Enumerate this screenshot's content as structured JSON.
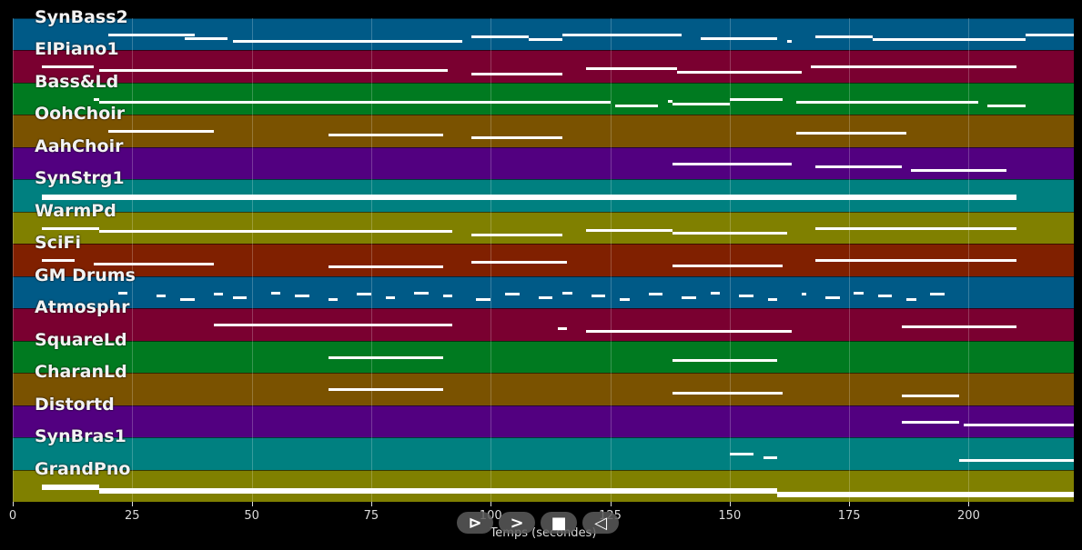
{
  "controls": {
    "play_back_icon": "⊳",
    "play_icon": ">",
    "stop_icon": "■",
    "rewind_icon": "◁"
  },
  "chart_data": {
    "type": "piano-roll",
    "xlabel": "Temps (secondes)",
    "xlim": [
      0,
      222
    ],
    "x_ticks": [
      0,
      25,
      50,
      75,
      100,
      125,
      150,
      175,
      200
    ],
    "tracks": [
      {
        "name": "SynBass2",
        "color": "#005a87",
        "notes": [
          [
            20,
            38
          ],
          [
            36,
            45
          ],
          [
            46,
            94
          ],
          [
            96,
            108
          ],
          [
            108,
            115
          ],
          [
            115,
            140
          ],
          [
            144,
            160
          ],
          [
            162,
            163
          ],
          [
            168,
            180
          ],
          [
            180,
            212
          ],
          [
            212,
            222
          ]
        ]
      },
      {
        "name": "ElPiano1",
        "color": "#7a0030",
        "notes": [
          [
            6,
            17
          ],
          [
            18,
            91
          ],
          [
            96,
            115
          ],
          [
            120,
            139
          ],
          [
            139,
            165
          ],
          [
            167,
            210
          ]
        ]
      },
      {
        "name": "Bass&Ld",
        "color": "#007a20",
        "notes": [
          [
            17,
            18
          ],
          [
            18,
            125
          ],
          [
            126,
            135
          ],
          [
            137,
            138
          ],
          [
            138,
            150
          ],
          [
            150,
            161
          ],
          [
            164,
            202
          ],
          [
            204,
            212
          ]
        ]
      },
      {
        "name": "OohChoir",
        "color": "#7a5200",
        "notes": [
          [
            20,
            42
          ],
          [
            66,
            90
          ],
          [
            96,
            115
          ],
          [
            164,
            187
          ]
        ]
      },
      {
        "name": "AahChoir",
        "color": "#520080",
        "notes": [
          [
            138,
            163
          ],
          [
            168,
            186
          ],
          [
            188,
            208
          ]
        ]
      },
      {
        "name": "SynStrg1",
        "color": "#008080",
        "notes": [
          [
            6,
            210
          ]
        ]
      },
      {
        "name": "WarmPd",
        "color": "#808000",
        "notes": [
          [
            6,
            18
          ],
          [
            18,
            92
          ],
          [
            96,
            115
          ],
          [
            120,
            138
          ],
          [
            138,
            162
          ],
          [
            168,
            210
          ]
        ]
      },
      {
        "name": "SciFi",
        "color": "#802000",
        "notes": [
          [
            6,
            13
          ],
          [
            17,
            42
          ],
          [
            66,
            90
          ],
          [
            96,
            116
          ],
          [
            138,
            161
          ],
          [
            168,
            210
          ]
        ]
      },
      {
        "name": "GM Drums",
        "color": "#005a87",
        "notes": [
          [
            22,
            24
          ],
          [
            30,
            32
          ],
          [
            35,
            38
          ],
          [
            42,
            44
          ],
          [
            46,
            49
          ],
          [
            54,
            56
          ],
          [
            59,
            62
          ],
          [
            66,
            68
          ],
          [
            72,
            75
          ],
          [
            78,
            80
          ],
          [
            84,
            87
          ],
          [
            90,
            92
          ],
          [
            97,
            100
          ],
          [
            103,
            106
          ],
          [
            110,
            113
          ],
          [
            115,
            117
          ],
          [
            121,
            124
          ],
          [
            127,
            129
          ],
          [
            133,
            136
          ],
          [
            140,
            143
          ],
          [
            146,
            148
          ],
          [
            152,
            155
          ],
          [
            158,
            160
          ],
          [
            165,
            166
          ],
          [
            170,
            173
          ],
          [
            176,
            178
          ],
          [
            181,
            184
          ],
          [
            187,
            189
          ],
          [
            192,
            195
          ]
        ]
      },
      {
        "name": "Atmosphr",
        "color": "#7a0030",
        "notes": [
          [
            42,
            92
          ],
          [
            114,
            116
          ],
          [
            120,
            163
          ],
          [
            186,
            210
          ]
        ]
      },
      {
        "name": "SquareLd",
        "color": "#007a20",
        "notes": [
          [
            66,
            90
          ],
          [
            138,
            160
          ]
        ]
      },
      {
        "name": "CharanLd",
        "color": "#7a5200",
        "notes": [
          [
            66,
            90
          ],
          [
            138,
            161
          ],
          [
            186,
            198
          ]
        ]
      },
      {
        "name": "Distortd",
        "color": "#520080",
        "notes": [
          [
            186,
            198
          ],
          [
            199,
            222
          ]
        ]
      },
      {
        "name": "SynBras1",
        "color": "#008080",
        "notes": [
          [
            150,
            155
          ],
          [
            157,
            160
          ],
          [
            198,
            222
          ]
        ]
      },
      {
        "name": "GrandPno",
        "color": "#808000",
        "notes": [
          [
            6,
            18
          ],
          [
            18,
            160
          ],
          [
            160,
            222
          ]
        ]
      }
    ]
  }
}
